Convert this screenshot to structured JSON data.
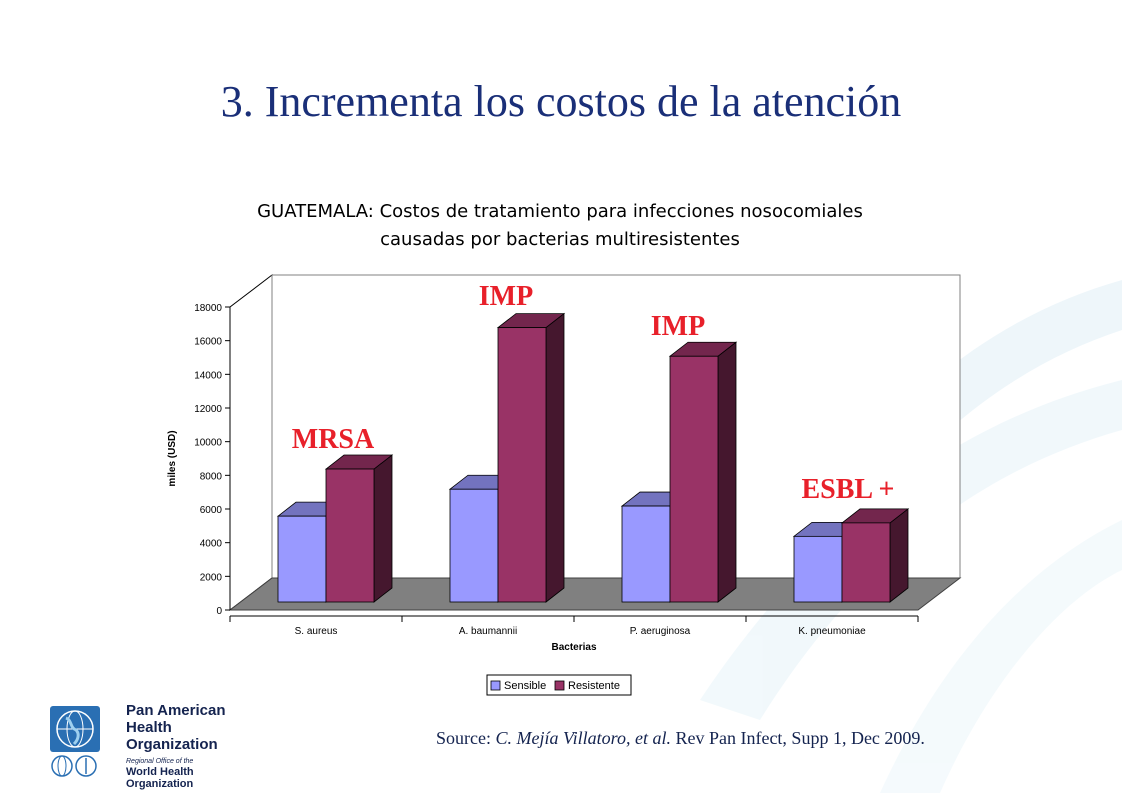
{
  "slide": {
    "title": "3. Incrementa los costos de la atención"
  },
  "chart_title": {
    "line1": "GUATEMALA: Costos de tratamiento para infecciones nosocomiales",
    "line2": "causadas por bacterias multiresistentes"
  },
  "chart_data": {
    "type": "bar",
    "title": "GUATEMALA: Costos de tratamiento para infecciones nosocomiales causadas por bacterias multiresistentes",
    "xlabel": "Bacterias",
    "ylabel": "miles (USD)",
    "ylim": [
      0,
      18000
    ],
    "yticks": [
      0,
      2000,
      4000,
      6000,
      8000,
      10000,
      12000,
      14000,
      16000,
      18000
    ],
    "categories": [
      "S. aureus",
      "A. baumannii",
      "P. aeruginosa",
      "K. pneumoniae"
    ],
    "series": [
      {
        "name": "Sensible",
        "values": [
          5100,
          6700,
          5700,
          3900
        ],
        "color": "#9999ff"
      },
      {
        "name": "Resistente",
        "values": [
          7900,
          16300,
          14600,
          4700
        ],
        "color": "#993366"
      }
    ],
    "annotations": [
      "MRSA",
      "IMP",
      "IMP",
      "ESBL +"
    ],
    "annotation_color": "#e8202a",
    "legend_position": "bottom",
    "style": "3d"
  },
  "source": {
    "prefix": "Source: ",
    "authors": "C. Mejía Villatoro, et al.",
    "rest": " Rev Pan Infect, Supp 1, Dec 2009."
  },
  "logo": {
    "line1": "Pan American",
    "line2": "Health",
    "line3": "Organization",
    "sub1": "Regional Office of the",
    "sub2": "World Health Organization",
    "icon": "globe-icon"
  }
}
